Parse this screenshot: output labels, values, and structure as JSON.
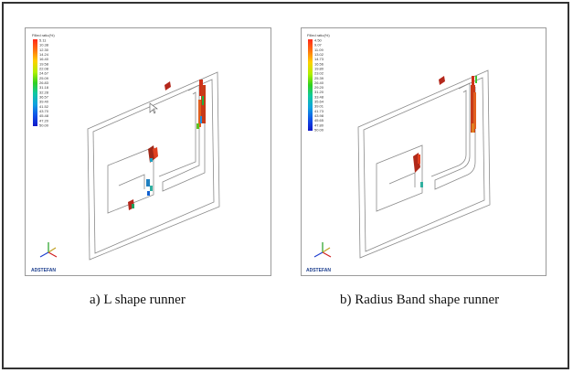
{
  "panels": [
    {
      "caption": "a) L shape runner",
      "legend_title": "Filled ratio(%)",
      "legend_values": [
        "5.11",
        "10.38",
        "12.30",
        "14.24",
        "16.40",
        "19.58",
        "22.08",
        "24.67",
        "25.09",
        "26.83",
        "31.18",
        "32.28",
        "36.57",
        "39.40",
        "41.52",
        "43.70",
        "45.48",
        "47.20",
        "50.00"
      ],
      "brand": "ADSTEFAN"
    },
    {
      "caption": "b) Radius Band shape runner",
      "legend_title": "Filled ratio(%)",
      "legend_values": [
        "4.50",
        "9.07",
        "11.09",
        "13.02",
        "14.73",
        "16.56",
        "19.80",
        "23.02",
        "25.39",
        "26.40",
        "29.20",
        "31.20",
        "33.48",
        "35.64",
        "39.01",
        "41.73",
        "43.98",
        "45.65",
        "47.80",
        "50.00"
      ],
      "brand": "ADSTEFAN"
    }
  ],
  "colors": {
    "legend_scale": [
      "#ff2a1a",
      "#ff6a10",
      "#ffb000",
      "#ffe000",
      "#c8f000",
      "#60e000",
      "#10c840",
      "#10c8a0",
      "#10a8e0",
      "#1060e8",
      "#1020d0"
    ],
    "defect": "#b4281c",
    "part_outline": "#8a8a8a"
  }
}
